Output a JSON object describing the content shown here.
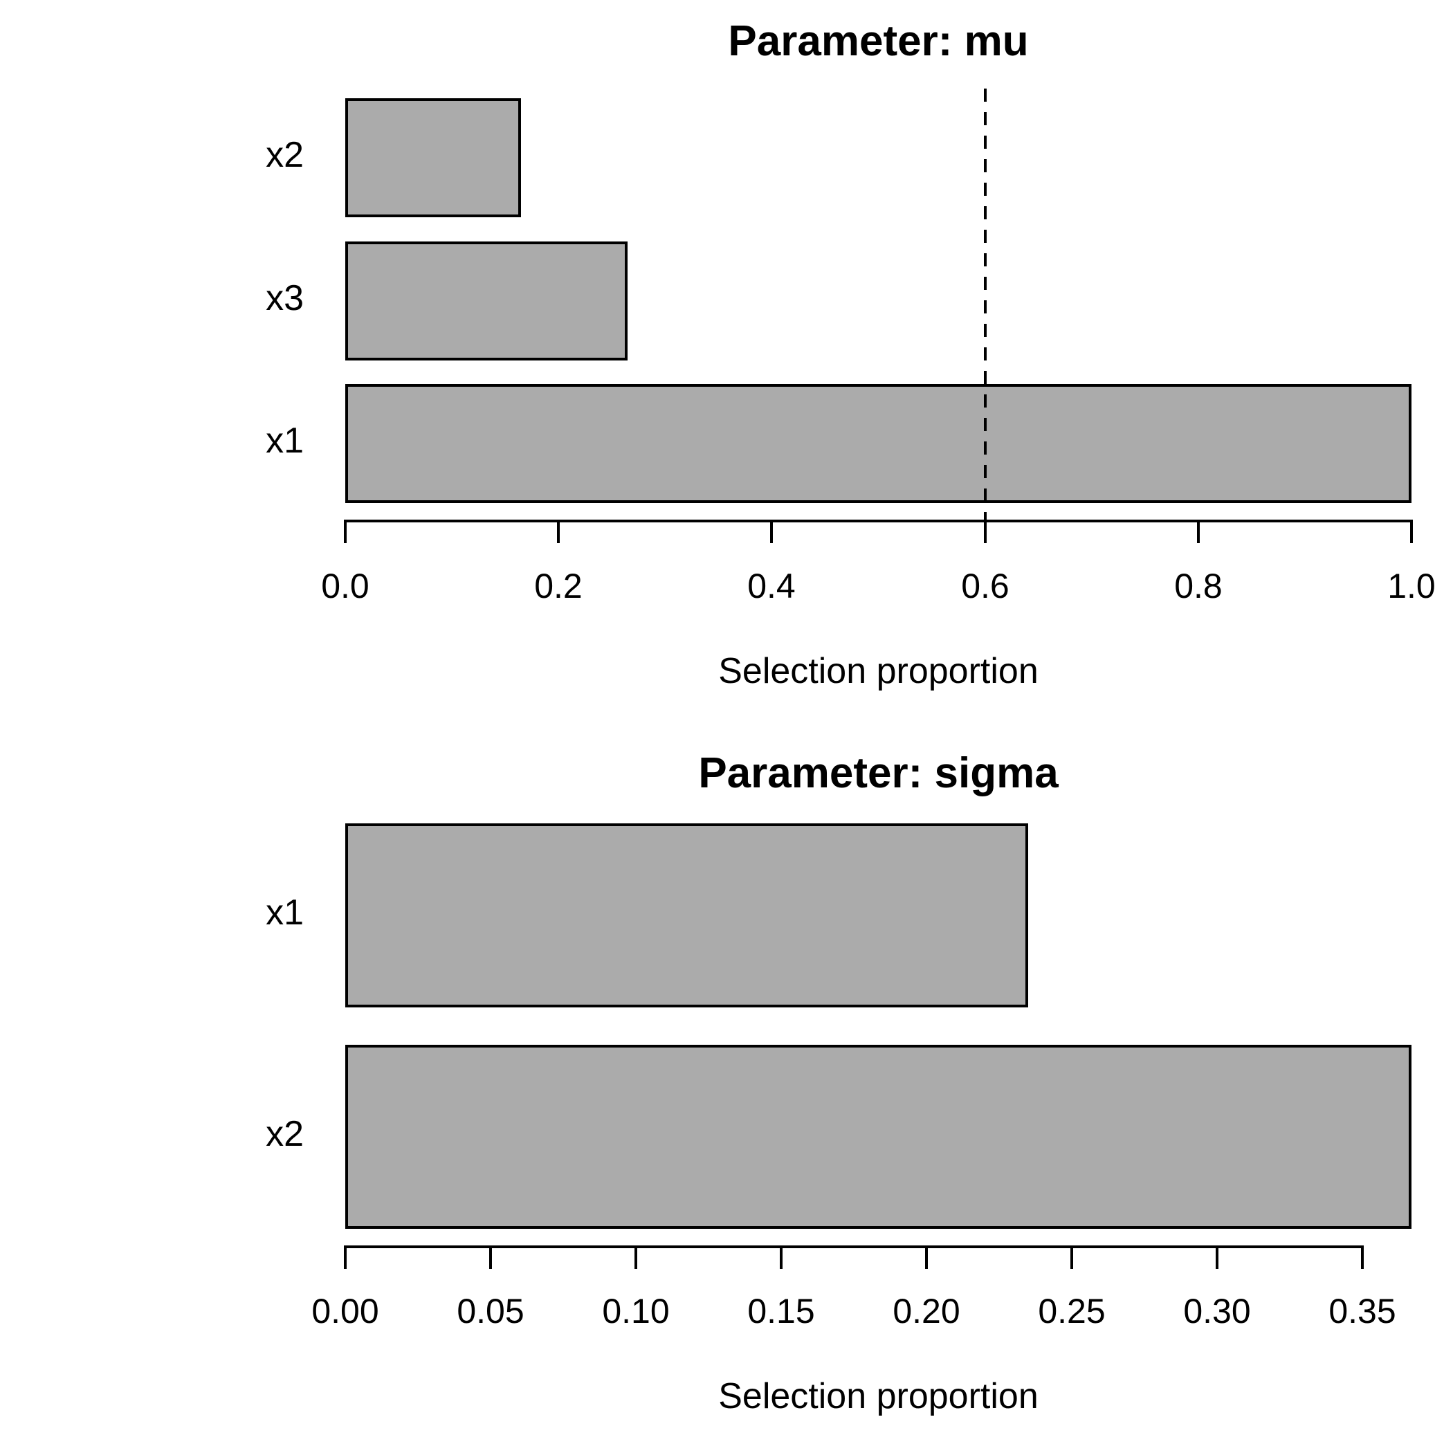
{
  "figure": {
    "background": "#ffffff",
    "text_color": "#000000",
    "bar_fill": "#ababab",
    "bar_border": "#000000"
  },
  "chart_data": [
    {
      "type": "bar",
      "orientation": "horizontal",
      "title": "Parameter: mu",
      "xlabel": "Selection proportion",
      "categories": [
        "x2",
        "x3",
        "x1"
      ],
      "values": [
        0.165,
        0.265,
        1.0
      ],
      "xlim": [
        0,
        1.0
      ],
      "xtick_values": [
        0.0,
        0.2,
        0.4,
        0.6,
        0.8,
        1.0
      ],
      "xtick_labels": [
        "0.0",
        "0.2",
        "0.4",
        "0.6",
        "0.8",
        "1.0"
      ],
      "vline": 0.6,
      "vline_style": "dashed",
      "grid": false,
      "legend": null
    },
    {
      "type": "bar",
      "orientation": "horizontal",
      "title": "Parameter: sigma",
      "xlabel": "Selection proportion",
      "categories": [
        "x1",
        "x2"
      ],
      "values": [
        0.235,
        0.367
      ],
      "xlim": [
        0,
        0.367
      ],
      "xtick_values": [
        0.0,
        0.05,
        0.1,
        0.15,
        0.2,
        0.25,
        0.3,
        0.35
      ],
      "xtick_labels": [
        "0.00",
        "0.05",
        "0.10",
        "0.15",
        "0.20",
        "0.25",
        "0.30",
        "0.35"
      ],
      "vline": null,
      "vline_style": null,
      "grid": false,
      "legend": null
    }
  ]
}
